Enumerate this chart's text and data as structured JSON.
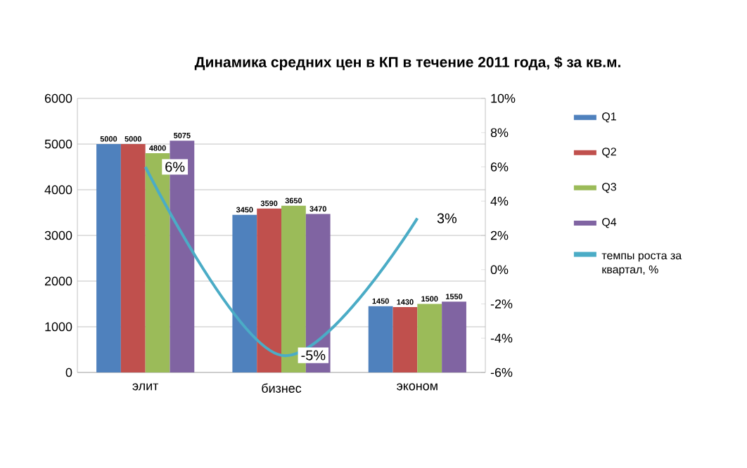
{
  "chart_data": {
    "type": "bar",
    "title": "Динамика средних цен в КП в течение 2011 года, $ за кв.м.",
    "categories": [
      "элит",
      "бизнес",
      "эконом"
    ],
    "series": [
      {
        "name": "Q1",
        "color": "#4f81bd",
        "values": [
          5000,
          3450,
          1450
        ]
      },
      {
        "name": "Q2",
        "color": "#c0504d",
        "values": [
          5000,
          3590,
          1430
        ]
      },
      {
        "name": "Q3",
        "color": "#9bbb59",
        "values": [
          4800,
          3650,
          1500
        ]
      },
      {
        "name": "Q4",
        "color": "#8064a2",
        "values": [
          5075,
          3470,
          1550
        ]
      },
      {
        "name": "темпы роста за квартал, %",
        "type": "line",
        "axis": "y2",
        "color": "#4bacc6",
        "values": [
          6,
          -5,
          3
        ],
        "value_labels": [
          "6%",
          "-5%",
          "3%"
        ]
      }
    ],
    "ylim": [
      0,
      6000
    ],
    "yticks": [
      0,
      1000,
      2000,
      3000,
      4000,
      5000,
      6000
    ],
    "y2lim": [
      -6,
      10
    ],
    "y2ticks": [
      {
        "value": -6,
        "label": "-6%"
      },
      {
        "value": -4,
        "label": "-4%"
      },
      {
        "value": -2,
        "label": "-2%"
      },
      {
        "value": 0,
        "label": "0%"
      },
      {
        "value": 2,
        "label": "2%"
      },
      {
        "value": 4,
        "label": "4%"
      },
      {
        "value": 6,
        "label": "6%"
      },
      {
        "value": 8,
        "label": "8%"
      },
      {
        "value": 10,
        "label": "10%"
      }
    ],
    "grid": "y",
    "legend": "right",
    "data_labels": true
  }
}
